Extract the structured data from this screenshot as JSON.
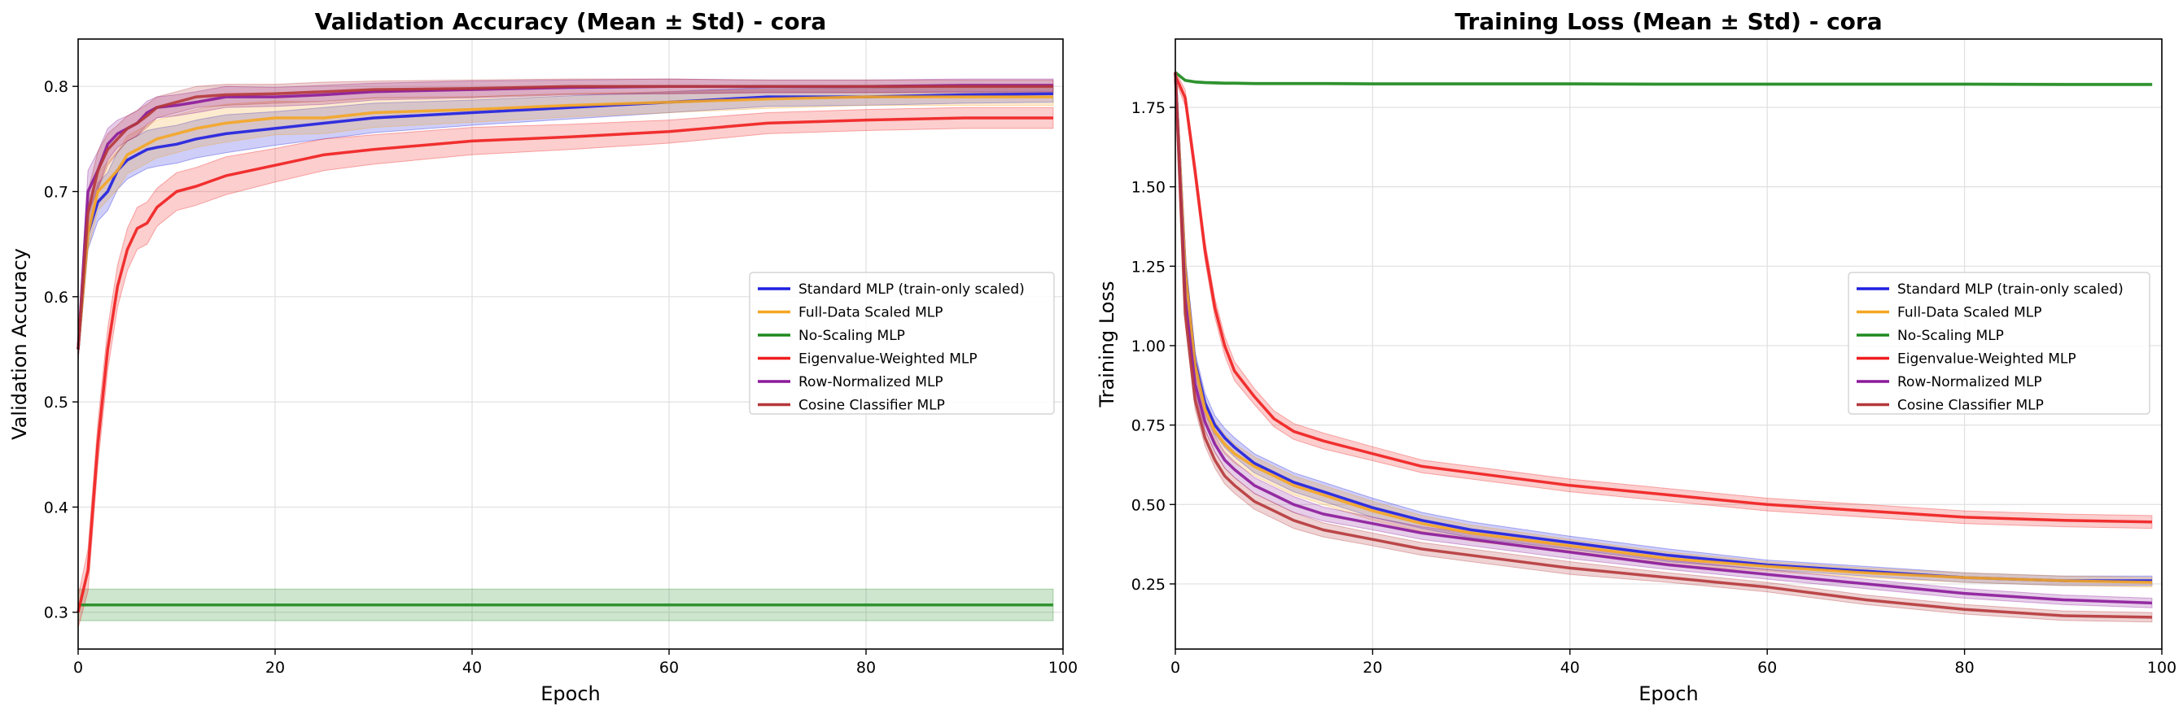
{
  "chart_data": [
    {
      "type": "line",
      "title": "Validation Accuracy (Mean ± Std) - cora",
      "xlabel": "Epoch",
      "ylabel": "Validation Accuracy",
      "xlim": [
        0,
        100
      ],
      "ylim": [
        0.265,
        0.845
      ],
      "xticks": [
        0,
        20,
        40,
        60,
        80,
        100
      ],
      "yticks": [
        0.3,
        0.4,
        0.5,
        0.6,
        0.7,
        0.8
      ],
      "ytick_labels": [
        "0.3",
        "0.4",
        "0.5",
        "0.6",
        "0.7",
        "0.8"
      ],
      "grid": true,
      "legend_position": "center-right",
      "x": [
        0,
        1,
        2,
        3,
        4,
        5,
        6,
        7,
        8,
        10,
        12,
        15,
        20,
        25,
        30,
        40,
        50,
        60,
        70,
        80,
        90,
        99
      ],
      "series": [
        {
          "name": "Standard MLP (train-only scaled)",
          "color": "#1f1fe0",
          "values": [
            0.55,
            0.66,
            0.69,
            0.7,
            0.72,
            0.73,
            0.735,
            0.74,
            0.742,
            0.745,
            0.75,
            0.755,
            0.76,
            0.765,
            0.77,
            0.775,
            0.78,
            0.785,
            0.79,
            0.79,
            0.792,
            0.793
          ],
          "std": [
            0.01,
            0.015,
            0.018,
            0.018,
            0.018,
            0.018,
            0.018,
            0.018,
            0.018,
            0.018,
            0.018,
            0.018,
            0.016,
            0.015,
            0.014,
            0.012,
            0.011,
            0.01,
            0.009,
            0.008,
            0.008,
            0.008
          ]
        },
        {
          "name": "Full-Data Scaled MLP",
          "color": "#f5a623",
          "values": [
            0.55,
            0.66,
            0.7,
            0.71,
            0.72,
            0.735,
            0.74,
            0.745,
            0.75,
            0.755,
            0.76,
            0.765,
            0.77,
            0.77,
            0.775,
            0.778,
            0.782,
            0.785,
            0.788,
            0.79,
            0.79,
            0.79
          ],
          "std": [
            0.01,
            0.015,
            0.018,
            0.018,
            0.018,
            0.018,
            0.018,
            0.018,
            0.018,
            0.018,
            0.018,
            0.018,
            0.016,
            0.015,
            0.014,
            0.012,
            0.011,
            0.01,
            0.009,
            0.008,
            0.008,
            0.008
          ]
        },
        {
          "name": "No-Scaling MLP",
          "color": "#1e8a1e",
          "values": [
            0.307,
            0.307,
            0.307,
            0.307,
            0.307,
            0.307,
            0.307,
            0.307,
            0.307,
            0.307,
            0.307,
            0.307,
            0.307,
            0.307,
            0.307,
            0.307,
            0.307,
            0.307,
            0.307,
            0.307,
            0.307,
            0.307
          ],
          "std": [
            0.015,
            0.015,
            0.015,
            0.015,
            0.015,
            0.015,
            0.015,
            0.015,
            0.015,
            0.015,
            0.015,
            0.015,
            0.015,
            0.015,
            0.015,
            0.015,
            0.015,
            0.015,
            0.015,
            0.015,
            0.015,
            0.015
          ]
        },
        {
          "name": "Eigenvalue-Weighted MLP",
          "color": "#f01e1e",
          "values": [
            0.3,
            0.34,
            0.46,
            0.55,
            0.61,
            0.645,
            0.665,
            0.67,
            0.685,
            0.7,
            0.705,
            0.715,
            0.725,
            0.735,
            0.74,
            0.748,
            0.752,
            0.757,
            0.765,
            0.768,
            0.77,
            0.77
          ],
          "std": [
            0.015,
            0.02,
            0.02,
            0.02,
            0.02,
            0.02,
            0.02,
            0.02,
            0.018,
            0.018,
            0.018,
            0.018,
            0.016,
            0.015,
            0.014,
            0.013,
            0.012,
            0.011,
            0.01,
            0.01,
            0.01,
            0.01
          ]
        },
        {
          "name": "Row-Normalized MLP",
          "color": "#8b1a9a",
          "values": [
            0.55,
            0.7,
            0.72,
            0.745,
            0.755,
            0.76,
            0.765,
            0.775,
            0.78,
            0.782,
            0.785,
            0.79,
            0.79,
            0.792,
            0.795,
            0.797,
            0.799,
            0.8,
            0.8,
            0.8,
            0.801,
            0.801
          ],
          "std": [
            0.01,
            0.02,
            0.018,
            0.015,
            0.013,
            0.012,
            0.012,
            0.011,
            0.01,
            0.01,
            0.01,
            0.01,
            0.009,
            0.009,
            0.008,
            0.008,
            0.007,
            0.007,
            0.006,
            0.006,
            0.006,
            0.006
          ]
        },
        {
          "name": "Cosine Classifier MLP",
          "color": "#b5373a",
          "values": [
            0.55,
            0.68,
            0.72,
            0.74,
            0.75,
            0.76,
            0.765,
            0.772,
            0.78,
            0.785,
            0.79,
            0.792,
            0.793,
            0.795,
            0.797,
            0.798,
            0.8,
            0.8,
            0.8,
            0.8,
            0.8,
            0.8
          ],
          "std": [
            0.01,
            0.02,
            0.018,
            0.015,
            0.013,
            0.012,
            0.012,
            0.011,
            0.01,
            0.01,
            0.01,
            0.01,
            0.009,
            0.009,
            0.008,
            0.008,
            0.007,
            0.007,
            0.006,
            0.006,
            0.006,
            0.006
          ]
        }
      ]
    },
    {
      "type": "line",
      "title": "Training Loss (Mean ± Std) - cora",
      "xlabel": "Epoch",
      "ylabel": "Training Loss",
      "xlim": [
        0,
        100
      ],
      "ylim": [
        0.045,
        1.965
      ],
      "xticks": [
        0,
        20,
        40,
        60,
        80,
        100
      ],
      "yticks": [
        0.25,
        0.5,
        0.75,
        1.0,
        1.25,
        1.5,
        1.75
      ],
      "ytick_labels": [
        "0.25",
        "0.50",
        "0.75",
        "1.00",
        "1.25",
        "1.50",
        "1.75"
      ],
      "grid": true,
      "legend_position": "center-right",
      "x": [
        0,
        1,
        2,
        3,
        4,
        5,
        6,
        8,
        10,
        12,
        15,
        20,
        25,
        30,
        40,
        50,
        60,
        70,
        80,
        90,
        99
      ],
      "series": [
        {
          "name": "Standard MLP (train-only scaled)",
          "color": "#1f1fe0",
          "values": [
            1.86,
            1.25,
            0.95,
            0.82,
            0.75,
            0.71,
            0.68,
            0.63,
            0.6,
            0.57,
            0.54,
            0.49,
            0.45,
            0.42,
            0.38,
            0.34,
            0.31,
            0.29,
            0.27,
            0.26,
            0.26
          ],
          "std": [
            0.01,
            0.03,
            0.03,
            0.03,
            0.03,
            0.03,
            0.03,
            0.03,
            0.03,
            0.03,
            0.03,
            0.03,
            0.025,
            0.025,
            0.02,
            0.02,
            0.015,
            0.015,
            0.015,
            0.015,
            0.015
          ]
        },
        {
          "name": "Full-Data Scaled MLP",
          "color": "#f5a623",
          "values": [
            1.86,
            1.24,
            0.94,
            0.8,
            0.73,
            0.69,
            0.66,
            0.62,
            0.59,
            0.56,
            0.53,
            0.48,
            0.44,
            0.41,
            0.37,
            0.33,
            0.305,
            0.285,
            0.27,
            0.26,
            0.255
          ],
          "std": [
            0.01,
            0.03,
            0.03,
            0.03,
            0.03,
            0.03,
            0.03,
            0.03,
            0.03,
            0.03,
            0.03,
            0.03,
            0.025,
            0.025,
            0.02,
            0.02,
            0.015,
            0.015,
            0.015,
            0.015,
            0.015
          ]
        },
        {
          "name": "No-Scaling MLP",
          "color": "#1e8a1e",
          "values": [
            1.86,
            1.835,
            1.83,
            1.828,
            1.827,
            1.826,
            1.826,
            1.825,
            1.825,
            1.825,
            1.825,
            1.824,
            1.824,
            1.824,
            1.824,
            1.823,
            1.823,
            1.823,
            1.823,
            1.822,
            1.822
          ],
          "std": [
            0.004,
            0.004,
            0.004,
            0.004,
            0.004,
            0.004,
            0.004,
            0.004,
            0.004,
            0.004,
            0.004,
            0.004,
            0.004,
            0.004,
            0.004,
            0.004,
            0.004,
            0.004,
            0.004,
            0.004,
            0.004
          ]
        },
        {
          "name": "Eigenvalue-Weighted MLP",
          "color": "#f01e1e",
          "values": [
            1.85,
            1.78,
            1.55,
            1.3,
            1.12,
            1.0,
            0.92,
            0.84,
            0.77,
            0.73,
            0.7,
            0.66,
            0.62,
            0.6,
            0.56,
            0.53,
            0.5,
            0.48,
            0.46,
            0.45,
            0.445
          ],
          "std": [
            0.015,
            0.025,
            0.03,
            0.03,
            0.03,
            0.03,
            0.03,
            0.025,
            0.025,
            0.025,
            0.025,
            0.022,
            0.02,
            0.02,
            0.02,
            0.02,
            0.02,
            0.02,
            0.02,
            0.02,
            0.02
          ]
        },
        {
          "name": "Row-Normalized MLP",
          "color": "#8b1a9a",
          "values": [
            1.86,
            1.15,
            0.88,
            0.76,
            0.69,
            0.64,
            0.61,
            0.56,
            0.53,
            0.5,
            0.47,
            0.44,
            0.41,
            0.39,
            0.35,
            0.31,
            0.28,
            0.25,
            0.22,
            0.2,
            0.19
          ],
          "std": [
            0.01,
            0.03,
            0.03,
            0.025,
            0.025,
            0.025,
            0.025,
            0.025,
            0.025,
            0.025,
            0.022,
            0.02,
            0.02,
            0.02,
            0.02,
            0.015,
            0.015,
            0.015,
            0.015,
            0.015,
            0.015
          ]
        },
        {
          "name": "Cosine Classifier MLP",
          "color": "#b5373a",
          "values": [
            1.86,
            1.1,
            0.83,
            0.71,
            0.64,
            0.59,
            0.56,
            0.51,
            0.48,
            0.45,
            0.42,
            0.39,
            0.36,
            0.34,
            0.3,
            0.27,
            0.24,
            0.2,
            0.17,
            0.15,
            0.145
          ],
          "std": [
            0.01,
            0.03,
            0.03,
            0.025,
            0.025,
            0.025,
            0.025,
            0.025,
            0.025,
            0.025,
            0.022,
            0.02,
            0.02,
            0.02,
            0.02,
            0.015,
            0.015,
            0.015,
            0.015,
            0.015,
            0.015
          ]
        }
      ]
    }
  ]
}
